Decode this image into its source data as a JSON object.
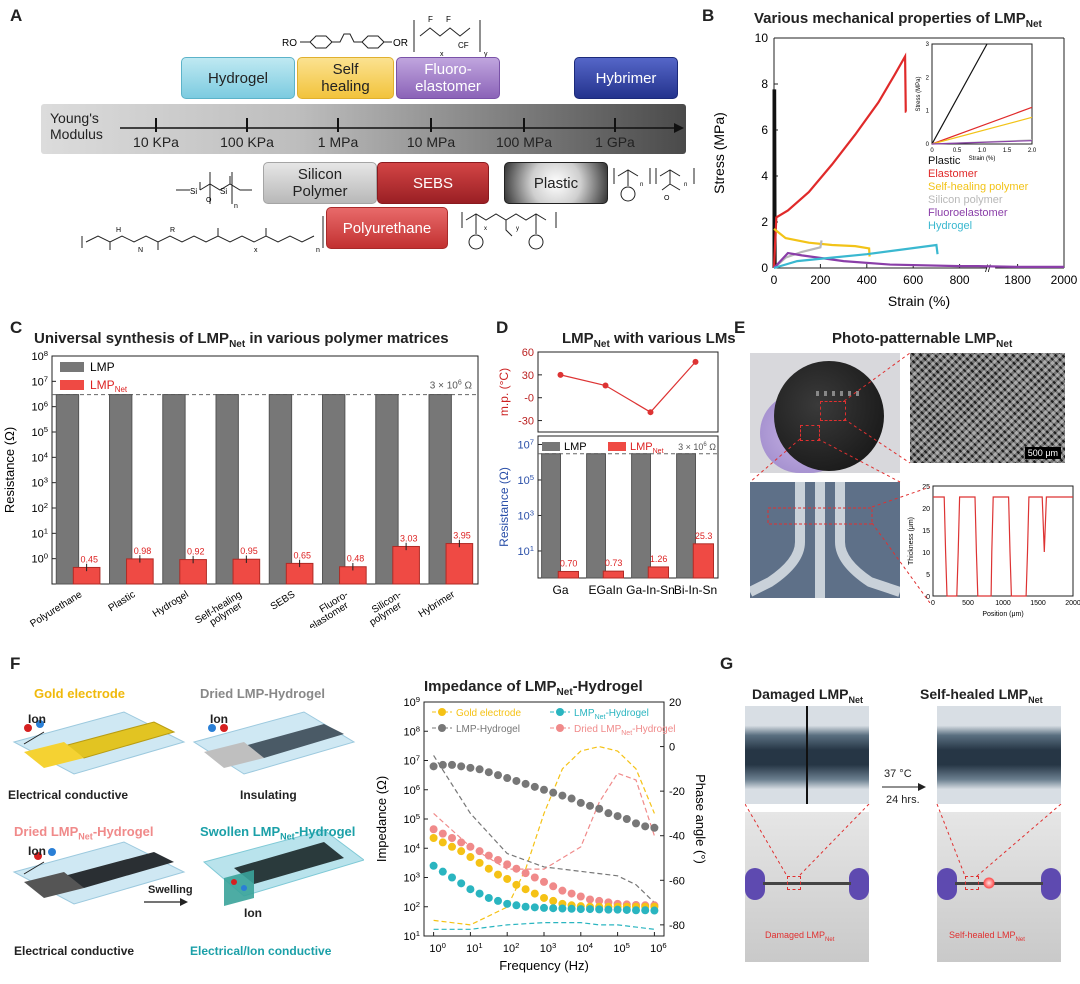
{
  "panel_letters": {
    "A": "A",
    "B": "B",
    "C": "C",
    "D": "D",
    "E": "E",
    "F": "F",
    "G": "G"
  },
  "panelA": {
    "materials_top": [
      {
        "label": "Hydrogel",
        "color": "#8fd3e3"
      },
      {
        "label": "Self\nhealing",
        "color": "#f5cf55"
      },
      {
        "label": "Fluoro-\nelastomer",
        "color": "#9a76c4"
      },
      {
        "label": "Hybrimer",
        "color": "#2e3fa0"
      }
    ],
    "materials_bottom": [
      {
        "label": "Silicon\nPolymer",
        "color": "#c8c8c8"
      },
      {
        "label": "SEBS",
        "color": "#b7282e"
      },
      {
        "label": "Plastic",
        "color": "#444444"
      },
      {
        "label": "Polyurethane",
        "color": "#d64545"
      }
    ],
    "axis_label": "Young's\nModulus",
    "ticks": [
      "10 KPa",
      "100 KPa",
      "1 MPa",
      "10 MPa",
      "100 MPa",
      "1 GPa"
    ],
    "chem_labels": {
      "ro": "RO",
      "or": "OR",
      "f": "F",
      "cf3": "CF",
      "x": "x",
      "y": "y",
      "si": "Si",
      "o": "O",
      "n": "n",
      "h": "H",
      "n_letter": "N",
      "m": "m",
      "r": "R"
    }
  },
  "chart_data": [
    {
      "id": "B",
      "type": "line",
      "title": "Various mechanical properties of LMP",
      "title_sub": "Net",
      "xlabel": "Strain (%)",
      "ylabel": "Stress (MPa)",
      "xlim": [
        0,
        2000
      ],
      "ylim": [
        0,
        10
      ],
      "x_ticks": [
        "0",
        "200",
        "400",
        "600",
        "800",
        "1800",
        "2000"
      ],
      "y_ticks": [
        "0",
        "2",
        "4",
        "6",
        "8",
        "10"
      ],
      "legend": [
        {
          "name": "Plastic",
          "color": "#111111"
        },
        {
          "name": "Elastomer",
          "color": "#e02a2a"
        },
        {
          "name": "Self-healing polymer",
          "color": "#f2c318"
        },
        {
          "name": "Silicon polymer",
          "color": "#b8b8b8"
        },
        {
          "name": "Fluoroelastomer",
          "color": "#8a3ea8"
        },
        {
          "name": "Hydrogel",
          "color": "#3ab8d0"
        }
      ],
      "series": [
        {
          "name": "Plastic",
          "x": [
            0,
            0,
            3,
            5
          ],
          "y": [
            0,
            7.7,
            7.7,
            0
          ]
        },
        {
          "name": "Elastomer",
          "x": [
            0,
            10,
            60,
            150,
            250,
            350,
            450,
            520,
            565,
            568,
            570
          ],
          "y": [
            0,
            2.2,
            2.5,
            3.3,
            4.5,
            5.8,
            7.2,
            8.4,
            9.2,
            6.8,
            6.8
          ]
        },
        {
          "name": "Self-healing polymer",
          "x": [
            0,
            50,
            150,
            250,
            350,
            410,
            412
          ],
          "y": [
            1.7,
            1.3,
            1.1,
            1.0,
            0.95,
            0.85,
            0.5
          ]
        },
        {
          "name": "Silicon polymer",
          "x": [
            0,
            50,
            120,
            200,
            205
          ],
          "y": [
            0,
            0.45,
            0.7,
            0.9,
            1.2
          ]
        },
        {
          "name": "Fluoroelastomer",
          "x": [
            0,
            60,
            120,
            300,
            500,
            800,
            880,
            1800,
            2000
          ],
          "y": [
            0,
            0.65,
            0.55,
            0.3,
            0.15,
            0.08,
            0.08,
            0.05,
            0.05
          ]
        },
        {
          "name": "Hydrogel",
          "x": [
            0,
            100,
            250,
            400,
            550,
            700,
            705
          ],
          "y": [
            0,
            0.3,
            0.45,
            0.6,
            0.8,
            1.0,
            0.6
          ]
        }
      ],
      "inset": {
        "xlabel": "Strain (%)",
        "ylabel": "Stress (MPa)",
        "xlim": [
          0,
          2
        ],
        "ylim": [
          0,
          3
        ],
        "x_ticks": [
          "0",
          "0.5",
          "1.0",
          "1.5",
          "2.0"
        ],
        "y_ticks": [
          "0",
          "1",
          "2",
          "3"
        ],
        "series": [
          {
            "name": "Plastic",
            "x": [
              0,
              1.1
            ],
            "y": [
              0,
              3
            ]
          },
          {
            "name": "Elastomer",
            "x": [
              0,
              2
            ],
            "y": [
              0,
              1.1
            ]
          },
          {
            "name": "Self-healing polymer",
            "x": [
              0,
              2
            ],
            "y": [
              0,
              0.8
            ]
          },
          {
            "name": "Silicon polymer",
            "x": [
              0,
              2
            ],
            "y": [
              0,
              0.12
            ]
          },
          {
            "name": "Fluoroelastomer",
            "x": [
              0,
              2
            ],
            "y": [
              0,
              0.1
            ]
          }
        ]
      }
    },
    {
      "id": "C",
      "type": "bar",
      "title": "Universal synthesis of LMP",
      "title_sub": "Net",
      "title_tail": "in various polymer matrices",
      "ylabel": "Resistance (Ω)",
      "categories": [
        "Polyurethane",
        "Plastic",
        "Hydrogel",
        "Self-healing\npolymer",
        "SEBS",
        "Fluoro-\nelastomer",
        "Silicon-\npolymer",
        "Hybrimer"
      ],
      "series": [
        {
          "name": "LMP",
          "values": [
            3000000,
            3000000,
            3000000,
            3000000,
            3000000,
            3000000,
            3000000,
            3000000
          ]
        },
        {
          "name": "LMP_Net",
          "values": [
            0.45,
            0.98,
            0.92,
            0.95,
            0.65,
            0.48,
            3.03,
            3.95
          ]
        }
      ],
      "value_labels": [
        "0.45",
        "0.98",
        "0.92",
        "0.95",
        "0.65",
        "0.48",
        "3.03",
        "3.95"
      ],
      "reference_label": "3 × 10",
      "reference_exp": "6",
      "reference_unit": " Ω",
      "y_scale": "log",
      "ylim": [
        0.1,
        100000000
      ],
      "y_tick_exps": [
        "-1",
        "0",
        "1",
        "2",
        "3",
        "4",
        "5",
        "6",
        "7",
        "8"
      ],
      "legend": [
        "LMP",
        "LMP"
      ],
      "legend_sub": "Net"
    },
    {
      "id": "D_top",
      "type": "line",
      "title": "LMP",
      "title_sub": "Net",
      "title_tail": "with various LMs",
      "ylabel": "m.p. (°C)",
      "categories": [
        "Ga",
        "EGaIn",
        "Ga-In-Sn",
        "Bi-In-Sn"
      ],
      "values": [
        30,
        16,
        -19,
        47
      ],
      "ylim": [
        -45,
        60
      ],
      "y_ticks": [
        "60",
        "30",
        "-0",
        "-30"
      ]
    },
    {
      "id": "D_bottom",
      "type": "bar",
      "ylabel": "Resistance (Ω)",
      "categories": [
        "Ga",
        "EGaIn",
        "Ga-In-Sn",
        "Bi-In-Sn"
      ],
      "series": [
        {
          "name": "LMP",
          "values": [
            3000000,
            3000000,
            3000000,
            3000000
          ]
        },
        {
          "name": "LMP_Net",
          "values": [
            0.7,
            0.73,
            1.26,
            25.3
          ]
        }
      ],
      "value_labels": [
        "0.70",
        "0.73",
        "1.26",
        "25.3"
      ],
      "reference_label": "3 × 10",
      "reference_exp": "6",
      "reference_unit": " Ω",
      "y_scale": "log",
      "ylim": [
        0.3,
        30000000
      ],
      "y_tick_exps": [
        "1",
        "3",
        "5",
        "7"
      ],
      "legend": [
        "LMP",
        "LMP"
      ],
      "legend_sub": "Net"
    },
    {
      "id": "E_profile",
      "type": "line",
      "xlabel": "Position (μm)",
      "ylabel": "Thickness (μm)",
      "xlim": [
        0,
        2000
      ],
      "ylim": [
        0,
        25
      ],
      "x_ticks": [
        "0",
        "500",
        "1000",
        "1500",
        "2000"
      ],
      "y_ticks": [
        "0",
        "5",
        "10",
        "15",
        "20",
        "25"
      ],
      "series": [
        {
          "name": "profile",
          "x": [
            0,
            160,
            180,
            200,
            210,
            340,
            360,
            380,
            600,
            620,
            640,
            650,
            830,
            840,
            860,
            1080,
            1100,
            1120,
            1140,
            1330,
            1350,
            1370,
            1560,
            1590,
            1620,
            1640,
            2000
          ],
          "y": [
            22.5,
            22.5,
            10,
            0,
            0,
            0,
            10,
            22.5,
            22.5,
            10,
            0,
            0,
            0,
            10,
            22.5,
            22.5,
            10,
            0,
            0,
            0,
            10,
            22.5,
            22.5,
            10,
            22.5,
            22.5,
            22.5
          ]
        }
      ]
    },
    {
      "id": "F",
      "type": "scatter",
      "title": "Impedance of LMP",
      "title_sub": "Net",
      "title_tail": "-Hydrogel",
      "xlabel": "Frequency (Hz)",
      "ylabel": "Impedance (Ω)",
      "y2label": "Phase angle (°)",
      "x_scale": "log",
      "xlim": [
        1,
        1000000
      ],
      "ylim": [
        10,
        1000000000
      ],
      "y2lim": [
        -85,
        20
      ],
      "x_tick_exps": [
        "0",
        "1",
        "2",
        "3",
        "4",
        "5",
        "6"
      ],
      "y_tick_exps": [
        "1",
        "2",
        "3",
        "4",
        "5",
        "6",
        "7",
        "8",
        "9"
      ],
      "y2_ticks": [
        "20",
        "0",
        "-20",
        "-40",
        "-60",
        "-80"
      ],
      "legend": [
        {
          "name": "Gold electrode",
          "color": "#f5c215"
        },
        {
          "name": "LMP",
          "sub": "Net",
          "tail": "-Hydrogel",
          "color": "#2ab5c0"
        },
        {
          "name": "LMP-Hydrogel",
          "color": "#777777"
        },
        {
          "name": "Dried LMP",
          "sub": "Net",
          "tail": "-Hydrogel",
          "color": "#f08a8a"
        }
      ],
      "series": [
        {
          "name": "LMP-Hydrogel",
          "x_log": [
            0,
            0.25,
            0.5,
            0.75,
            1,
            1.25,
            1.5,
            1.75,
            2,
            2.25,
            2.5,
            2.75,
            3,
            3.25,
            3.5,
            3.75,
            4,
            4.25,
            4.5,
            4.75,
            5,
            5.25,
            5.5,
            5.75,
            6
          ],
          "y_log": [
            6.8,
            6.85,
            6.85,
            6.8,
            6.75,
            6.7,
            6.6,
            6.5,
            6.4,
            6.3,
            6.2,
            6.1,
            6.0,
            5.9,
            5.8,
            5.7,
            5.55,
            5.45,
            5.35,
            5.2,
            5.1,
            5.0,
            4.85,
            4.75,
            4.7
          ]
        },
        {
          "name": "Dried LMP_Net-Hydrogel",
          "x_log": [
            0,
            0.25,
            0.5,
            0.75,
            1,
            1.25,
            1.5,
            1.75,
            2,
            2.25,
            2.5,
            2.75,
            3,
            3.25,
            3.5,
            3.75,
            4,
            4.25,
            4.5,
            4.75,
            5,
            5.25,
            5.5,
            5.75,
            6
          ],
          "y_log": [
            4.65,
            4.5,
            4.35,
            4.2,
            4.05,
            3.9,
            3.75,
            3.6,
            3.45,
            3.3,
            3.15,
            3.0,
            2.85,
            2.7,
            2.55,
            2.45,
            2.35,
            2.25,
            2.2,
            2.15,
            2.1,
            2.08,
            2.06,
            2.05,
            2.05
          ]
        },
        {
          "name": "Gold electrode",
          "x_log": [
            0,
            0.25,
            0.5,
            0.75,
            1,
            1.25,
            1.5,
            1.75,
            2,
            2.25,
            2.5,
            2.75,
            3,
            3.25,
            3.5,
            3.75,
            4,
            4.25,
            4.5,
            4.75,
            5,
            5.25,
            5.5,
            5.75,
            6
          ],
          "y_log": [
            4.35,
            4.2,
            4.05,
            3.9,
            3.7,
            3.5,
            3.3,
            3.1,
            2.95,
            2.75,
            2.6,
            2.45,
            2.3,
            2.2,
            2.1,
            2.05,
            2.02,
            2.0,
            2.0,
            2.0,
            2.0,
            2.0,
            2.0,
            2.0,
            2.0
          ]
        },
        {
          "name": "LMP_Net-Hydrogel",
          "x_log": [
            0,
            0.25,
            0.5,
            0.75,
            1,
            1.25,
            1.5,
            1.75,
            2,
            2.25,
            2.5,
            2.75,
            3,
            3.25,
            3.5,
            3.75,
            4,
            4.25,
            4.5,
            4.75,
            5,
            5.25,
            5.5,
            5.75,
            6
          ],
          "y_log": [
            3.4,
            3.2,
            3.0,
            2.8,
            2.6,
            2.45,
            2.3,
            2.2,
            2.1,
            2.05,
            2.0,
            1.98,
            1.96,
            1.95,
            1.94,
            1.93,
            1.92,
            1.92,
            1.91,
            1.9,
            1.9,
            1.89,
            1.88,
            1.88,
            1.87
          ]
        }
      ],
      "phase_series": [
        {
          "name": "Gold electrode",
          "x_log": [
            0,
            1,
            2,
            2.5,
            3,
            3.5,
            4,
            4.5,
            5,
            5.5,
            6
          ],
          "y": [
            -78,
            -80,
            -72,
            -55,
            -30,
            -10,
            -2,
            0,
            -2,
            -10,
            -30
          ]
        },
        {
          "name": "LMP_Net-Hydrogel",
          "x_log": [
            0,
            1,
            2,
            3,
            3.5,
            4,
            4.5,
            5,
            5.5,
            6
          ],
          "y": [
            -82,
            -82,
            -80,
            -79,
            -79,
            -79,
            -80,
            -80,
            -81,
            -82
          ]
        },
        {
          "name": "LMP-Hydrogel",
          "x_log": [
            0,
            1,
            2,
            3,
            4,
            5,
            5.5,
            6
          ],
          "y": [
            -4,
            -30,
            -48,
            -54,
            -56,
            -58,
            -62,
            -70
          ]
        },
        {
          "name": "Dried LMP_Net-Hydrogel",
          "x_log": [
            0,
            1,
            2,
            3,
            4,
            4.5,
            5,
            5.5,
            6
          ],
          "y": [
            -30,
            -45,
            -55,
            -55,
            -45,
            -25,
            -12,
            -15,
            -40
          ]
        }
      ]
    }
  ],
  "panelE": {
    "title": "Photo-patternable LMP",
    "title_sub": "Net",
    "scale_bar": "500 μm"
  },
  "panelF": {
    "gold_title": "Gold electrode",
    "dried_lmp_title": "Dried LMP-Hydrogel",
    "dried_net_title": "Dried LMP",
    "dried_net_sub": "Net",
    "dried_net_tail": "-Hydrogel",
    "swollen_title": "Swollen LMP",
    "swollen_sub": "Net",
    "swollen_tail": "-Hydrogel",
    "ion": "Ion",
    "cond1": "Electrical conductive",
    "insulating": "Insulating",
    "cond2": "Electrical conductive",
    "cond3": "Electrical/Ion conductive",
    "swelling": "Swelling",
    "colors": {
      "gold": "#f5c215",
      "teal": "#1ba0a8",
      "pink": "#f08a8a",
      "ion_red": "#d62020",
      "ion_blue": "#2a7fd6"
    }
  },
  "panelG": {
    "left_title": "Damaged LMP",
    "left_sub": "Net",
    "right_title": "Self-healed LMP",
    "right_sub": "Net",
    "temp": "37 °C",
    "time": "24 hrs.",
    "left_caption": "Damaged LMP",
    "left_caption_sub": "Net",
    "right_caption": "Self-healed LMP",
    "right_caption_sub": "Net"
  }
}
